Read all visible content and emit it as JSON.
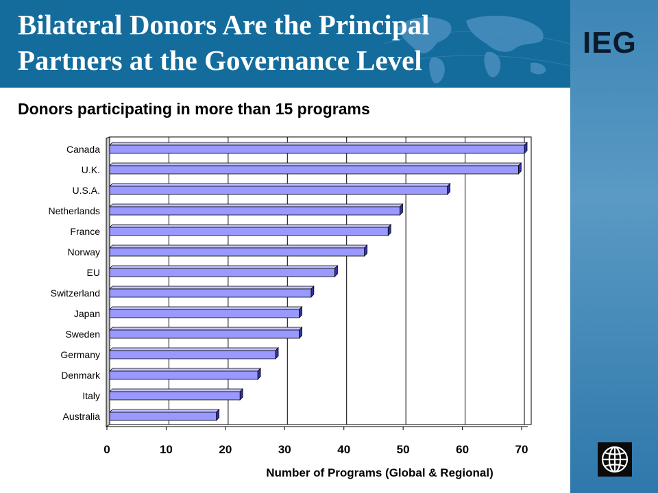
{
  "slide": {
    "title_line1": "Bilateral Donors Are the Principal",
    "title_line2": "Partners at the Governance Level",
    "brand": "IEG",
    "subtitle": "Donors participating in more than 15 programs"
  },
  "colors": {
    "header_bg": "#146c9c",
    "bar_front": "#9999ff",
    "bar_top": "#c4c4ff",
    "bar_side": "#3333aa",
    "floor": "#c0c0c0"
  },
  "icons": [
    "world-map-icon",
    "world-bank-globe-icon"
  ],
  "chart_data": {
    "type": "bar",
    "orientation": "horizontal",
    "style": "3d",
    "categories": [
      "Canada",
      "U.K.",
      "U.S.A.",
      "Netherlands",
      "France",
      "Norway",
      "EU",
      "Switzerland",
      "Japan",
      "Sweden",
      "Germany",
      "Denmark",
      "Italy",
      "Australia"
    ],
    "values": [
      70,
      69,
      57,
      49,
      47,
      43,
      38,
      34,
      32,
      32,
      28,
      25,
      22,
      18
    ],
    "xlabel": "Number of Programs (Global & Regional)",
    "ylabel": "",
    "xlim": [
      0,
      70
    ],
    "xticks": [
      "0",
      "10",
      "20",
      "30",
      "40",
      "50",
      "60",
      "70"
    ],
    "grid": "vertical"
  }
}
